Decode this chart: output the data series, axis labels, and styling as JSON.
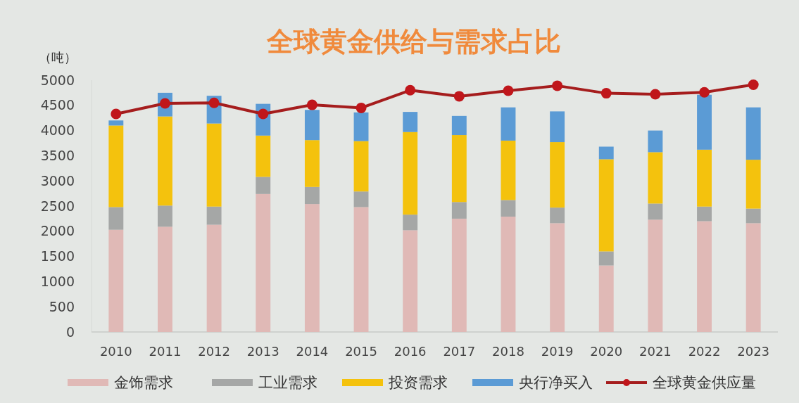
{
  "chart_data": {
    "type": "bar",
    "title": "全球黄金供给与需求占比",
    "ylabel": "（吨）",
    "categories": [
      "2010",
      "2011",
      "2012",
      "2013",
      "2014",
      "2015",
      "2016",
      "2017",
      "2018",
      "2019",
      "2020",
      "2021",
      "2022",
      "2023"
    ],
    "stacked": true,
    "ylim": [
      0,
      5000
    ],
    "yticks": [
      0,
      500,
      1000,
      1500,
      2000,
      2500,
      3000,
      3500,
      4000,
      4500,
      5000
    ],
    "grid": false,
    "legend": "bottom",
    "marker": "circle",
    "series": [
      {
        "name": "金饰需求",
        "color": "#e0b9b6",
        "values": [
          2030,
          2090,
          2130,
          2740,
          2540,
          2480,
          2020,
          2250,
          2290,
          2160,
          1320,
          2230,
          2200,
          2160
        ]
      },
      {
        "name": "工业需求",
        "color": "#a5a7a6",
        "values": [
          450,
          420,
          360,
          340,
          340,
          310,
          310,
          330,
          330,
          310,
          280,
          320,
          290,
          290
        ]
      },
      {
        "name": "投资需求",
        "color": "#f4c20d",
        "values": [
          1620,
          1770,
          1650,
          820,
          930,
          1000,
          1640,
          1330,
          1180,
          1300,
          1830,
          1020,
          1130,
          970
        ]
      },
      {
        "name": "央行净买入",
        "color": "#5b9bd5",
        "values": [
          100,
          470,
          550,
          630,
          600,
          570,
          400,
          380,
          660,
          610,
          250,
          430,
          1090,
          1040
        ]
      },
      {
        "name": "全球黄金供应量",
        "type": "line",
        "color": "#a51d1d",
        "values": [
          4330,
          4540,
          4550,
          4330,
          4510,
          4450,
          4800,
          4680,
          4790,
          4890,
          4740,
          4720,
          4760,
          4910
        ]
      }
    ]
  }
}
